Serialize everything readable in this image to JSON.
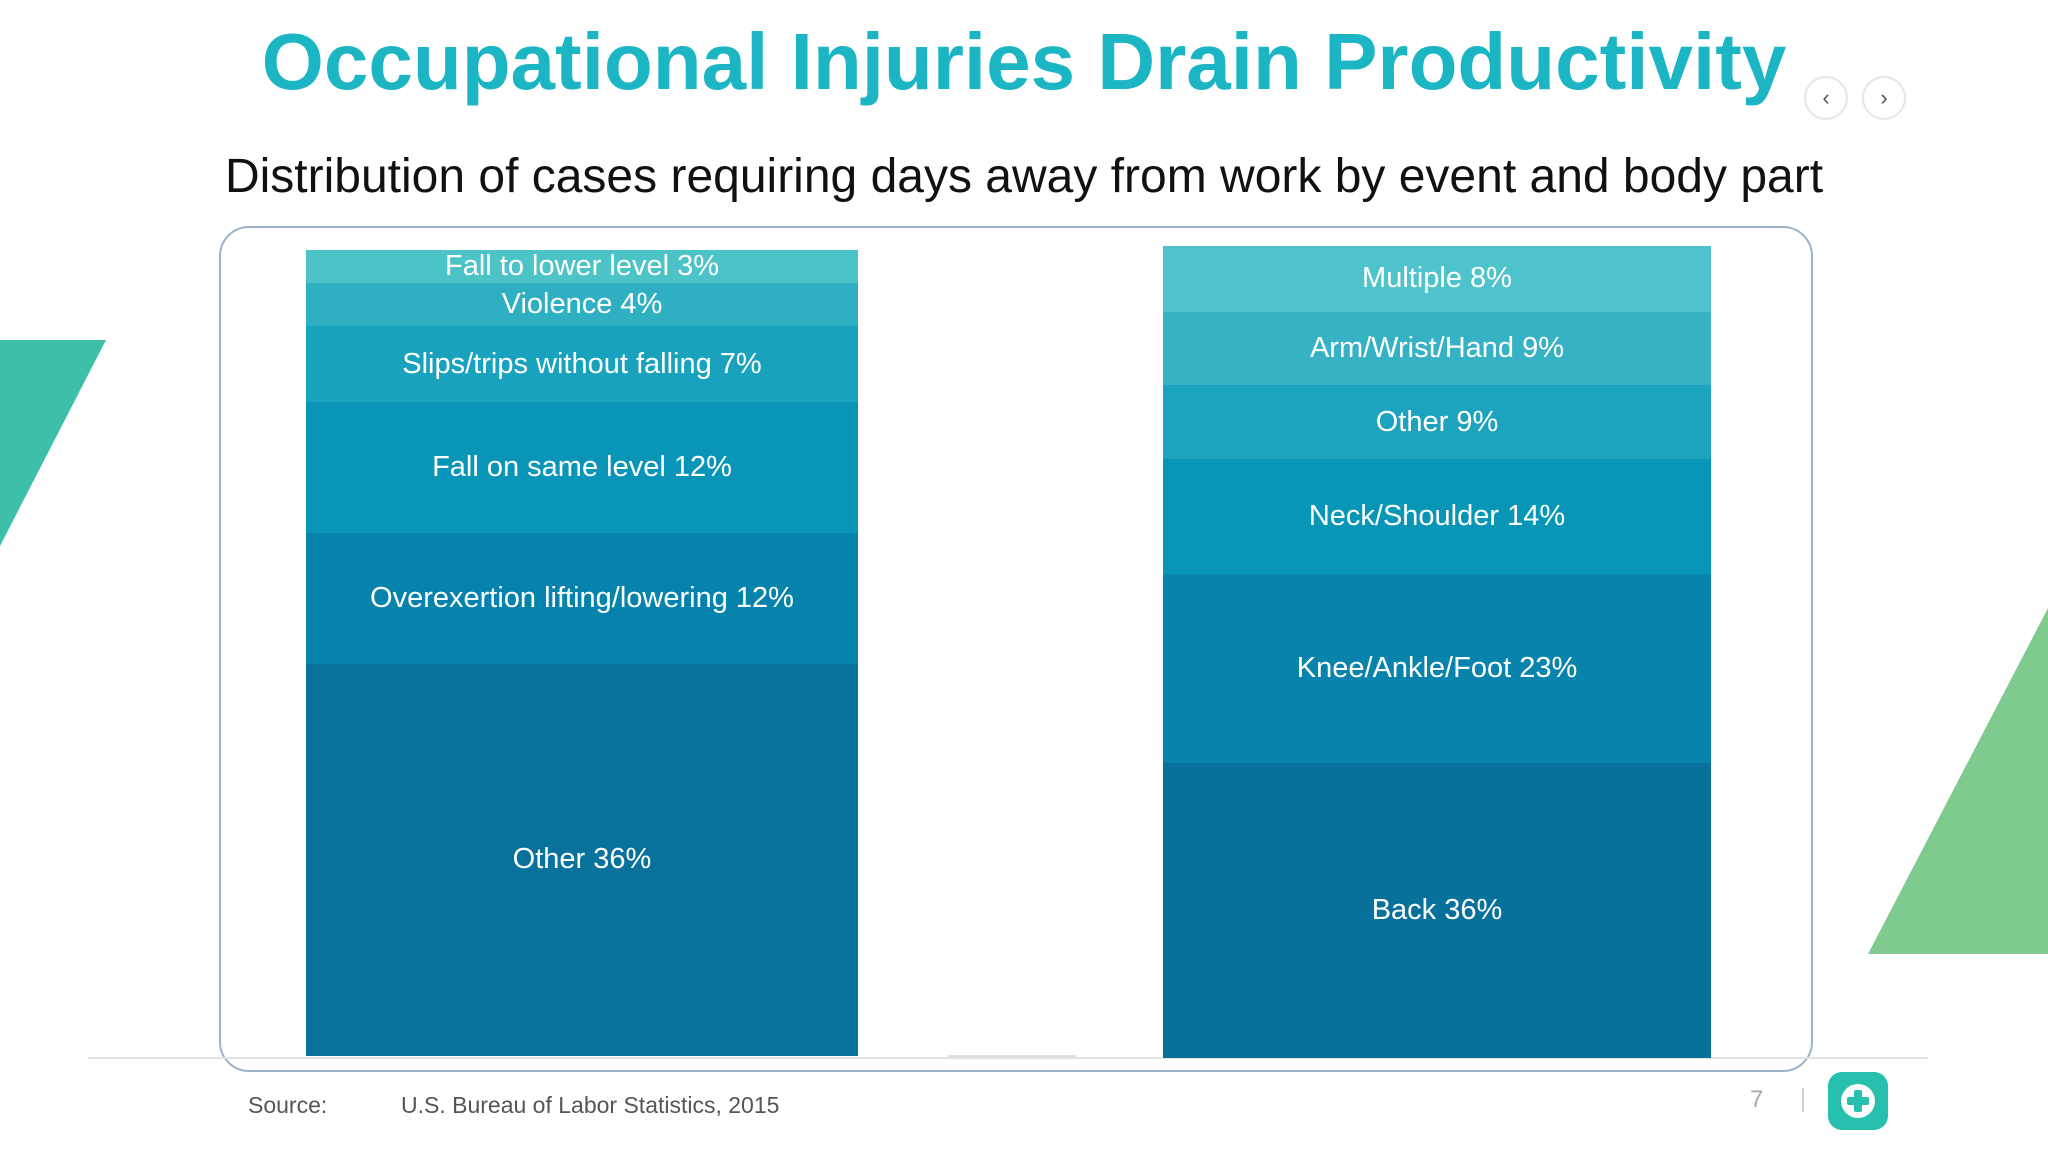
{
  "slide": {
    "title": "Occupational Injuries Drain Productivity",
    "subtitle": "Distribution of cases requiring days away from work by event and body part",
    "source_label": "Source:",
    "source_text": "U.S. Bureau of Labor Statistics, 2015",
    "page_number": "7"
  },
  "nav": {
    "prev_icon": "chevron-left-icon",
    "next_icon": "chevron-right-icon"
  },
  "chart_data": [
    {
      "type": "bar",
      "stacked": true,
      "segments": [
        {
          "label": "Fall to lower level 3%",
          "value": 3,
          "color": "#4cc3c6"
        },
        {
          "label": "Violence 4%",
          "value": 4,
          "color": "#2fb0c2"
        },
        {
          "label": "Slips/trips without falling 7%",
          "value": 7,
          "color": "#18a2bd"
        },
        {
          "label": "Fall on same level 12%",
          "value": 12,
          "color": "#0895b7"
        },
        {
          "label": "Overexertion lifting/lowering  12%",
          "value": 12,
          "color": "#0683ac"
        },
        {
          "label": "Other 36%",
          "value": 36,
          "color": "#08729d"
        }
      ]
    },
    {
      "type": "bar",
      "stacked": true,
      "segments": [
        {
          "label": "Multiple 8%",
          "value": 8,
          "color": "#4fc3cb"
        },
        {
          "label": "Arm/Wrist/Hand 9%",
          "value": 9,
          "color": "#36b2c4"
        },
        {
          "label": "Other 9%",
          "value": 9,
          "color": "#1ca4bf"
        },
        {
          "label": "Neck/Shoulder 14%",
          "value": 14,
          "color": "#0896b7"
        },
        {
          "label": "Knee/Ankle/Foot 23%",
          "value": 23,
          "color": "#0883ab"
        },
        {
          "label": "Back 36%",
          "value": 36,
          "color": "#07719c"
        }
      ]
    }
  ],
  "colors": {
    "title": "#1bb5c4",
    "teal_deco": "#3dbfaa",
    "green_deco": "#7fca8e",
    "logo": "#27bfae"
  }
}
